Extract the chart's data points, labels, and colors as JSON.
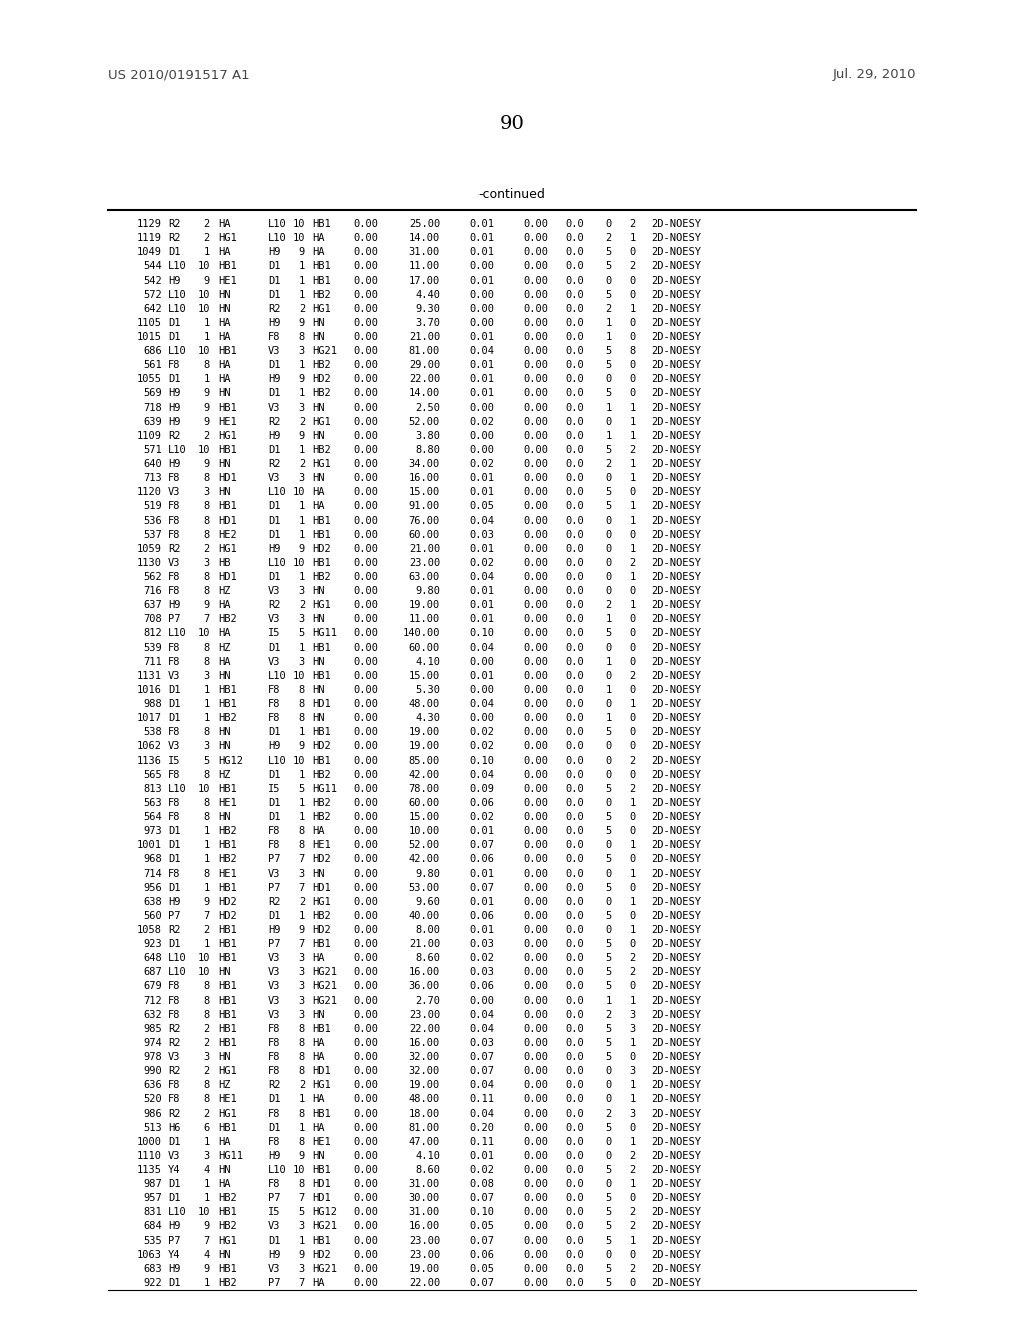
{
  "header_text": "-continued",
  "page_number": "90",
  "patent_left": "US 2010/0191517 A1",
  "patent_right": "Jul. 29, 2010",
  "rows": [
    [
      "1129",
      "R2",
      "2",
      "HA",
      "L10",
      "10",
      "HB1",
      "0.00",
      "25.00",
      "0.01",
      "0.00",
      "0.0",
      "0",
      "2",
      "2D-NOESY"
    ],
    [
      "1119",
      "R2",
      "2",
      "HG1",
      "L10",
      "10",
      "HA",
      "0.00",
      "14.00",
      "0.01",
      "0.00",
      "0.0",
      "2",
      "1",
      "2D-NOESY"
    ],
    [
      "1049",
      "D1",
      "1",
      "HA",
      "H9",
      "9",
      "HA",
      "0.00",
      "31.00",
      "0.01",
      "0.00",
      "0.0",
      "5",
      "0",
      "2D-NOESY"
    ],
    [
      "544",
      "L10",
      "10",
      "HB1",
      "D1",
      "1",
      "HB1",
      "0.00",
      "11.00",
      "0.00",
      "0.00",
      "0.0",
      "5",
      "2",
      "2D-NOESY"
    ],
    [
      "542",
      "H9",
      "9",
      "HE1",
      "D1",
      "1",
      "HB1",
      "0.00",
      "17.00",
      "0.01",
      "0.00",
      "0.0",
      "0",
      "0",
      "2D-NOESY"
    ],
    [
      "572",
      "L10",
      "10",
      "HN",
      "D1",
      "1",
      "HB2",
      "0.00",
      "4.40",
      "0.00",
      "0.00",
      "0.0",
      "5",
      "0",
      "2D-NOESY"
    ],
    [
      "642",
      "L10",
      "10",
      "HN",
      "R2",
      "2",
      "HG1",
      "0.00",
      "9.30",
      "0.00",
      "0.00",
      "0.0",
      "2",
      "1",
      "2D-NOESY"
    ],
    [
      "1105",
      "D1",
      "1",
      "HA",
      "H9",
      "9",
      "HN",
      "0.00",
      "3.70",
      "0.00",
      "0.00",
      "0.0",
      "1",
      "0",
      "2D-NOESY"
    ],
    [
      "1015",
      "D1",
      "1",
      "HA",
      "F8",
      "8",
      "HN",
      "0.00",
      "21.00",
      "0.01",
      "0.00",
      "0.0",
      "1",
      "0",
      "2D-NOESY"
    ],
    [
      "686",
      "L10",
      "10",
      "HB1",
      "V3",
      "3",
      "HG21",
      "0.00",
      "81.00",
      "0.04",
      "0.00",
      "0.0",
      "5",
      "8",
      "2D-NOESY"
    ],
    [
      "561",
      "F8",
      "8",
      "HA",
      "D1",
      "1",
      "HB2",
      "0.00",
      "29.00",
      "0.01",
      "0.00",
      "0.0",
      "5",
      "0",
      "2D-NOESY"
    ],
    [
      "1055",
      "D1",
      "1",
      "HA",
      "H9",
      "9",
      "HD2",
      "0.00",
      "22.00",
      "0.01",
      "0.00",
      "0.0",
      "0",
      "0",
      "2D-NOESY"
    ],
    [
      "569",
      "H9",
      "9",
      "HN",
      "D1",
      "1",
      "HB2",
      "0.00",
      "14.00",
      "0.01",
      "0.00",
      "0.0",
      "5",
      "0",
      "2D-NOESY"
    ],
    [
      "718",
      "H9",
      "9",
      "HB1",
      "V3",
      "3",
      "HN",
      "0.00",
      "2.50",
      "0.00",
      "0.00",
      "0.0",
      "1",
      "1",
      "2D-NOESY"
    ],
    [
      "639",
      "H9",
      "9",
      "HE1",
      "R2",
      "2",
      "HG1",
      "0.00",
      "52.00",
      "0.02",
      "0.00",
      "0.0",
      "0",
      "1",
      "2D-NOESY"
    ],
    [
      "1109",
      "R2",
      "2",
      "HG1",
      "H9",
      "9",
      "HN",
      "0.00",
      "3.80",
      "0.00",
      "0.00",
      "0.0",
      "1",
      "1",
      "2D-NOESY"
    ],
    [
      "571",
      "L10",
      "10",
      "HB1",
      "D1",
      "1",
      "HB2",
      "0.00",
      "8.80",
      "0.00",
      "0.00",
      "0.0",
      "5",
      "2",
      "2D-NOESY"
    ],
    [
      "640",
      "H9",
      "9",
      "HN",
      "R2",
      "2",
      "HG1",
      "0.00",
      "34.00",
      "0.02",
      "0.00",
      "0.0",
      "2",
      "1",
      "2D-NOESY"
    ],
    [
      "713",
      "F8",
      "8",
      "HD1",
      "V3",
      "3",
      "HN",
      "0.00",
      "16.00",
      "0.01",
      "0.00",
      "0.0",
      "0",
      "1",
      "2D-NOESY"
    ],
    [
      "1120",
      "V3",
      "3",
      "HN",
      "L10",
      "10",
      "HA",
      "0.00",
      "15.00",
      "0.01",
      "0.00",
      "0.0",
      "5",
      "0",
      "2D-NOESY"
    ],
    [
      "519",
      "F8",
      "8",
      "HB1",
      "D1",
      "1",
      "HA",
      "0.00",
      "91.00",
      "0.05",
      "0.00",
      "0.0",
      "5",
      "1",
      "2D-NOESY"
    ],
    [
      "536",
      "F8",
      "8",
      "HD1",
      "D1",
      "1",
      "HB1",
      "0.00",
      "76.00",
      "0.04",
      "0.00",
      "0.0",
      "0",
      "1",
      "2D-NOESY"
    ],
    [
      "537",
      "F8",
      "8",
      "HE2",
      "D1",
      "1",
      "HB1",
      "0.00",
      "60.00",
      "0.03",
      "0.00",
      "0.0",
      "0",
      "0",
      "2D-NOESY"
    ],
    [
      "1059",
      "R2",
      "2",
      "HG1",
      "H9",
      "9",
      "HD2",
      "0.00",
      "21.00",
      "0.01",
      "0.00",
      "0.0",
      "0",
      "1",
      "2D-NOESY"
    ],
    [
      "1130",
      "V3",
      "3",
      "HB",
      "L10",
      "10",
      "HB1",
      "0.00",
      "23.00",
      "0.02",
      "0.00",
      "0.0",
      "0",
      "2",
      "2D-NOESY"
    ],
    [
      "562",
      "F8",
      "8",
      "HD1",
      "D1",
      "1",
      "HB2",
      "0.00",
      "63.00",
      "0.04",
      "0.00",
      "0.0",
      "0",
      "1",
      "2D-NOESY"
    ],
    [
      "716",
      "F8",
      "8",
      "HZ",
      "V3",
      "3",
      "HN",
      "0.00",
      "9.80",
      "0.01",
      "0.00",
      "0.0",
      "0",
      "0",
      "2D-NOESY"
    ],
    [
      "637",
      "H9",
      "9",
      "HA",
      "R2",
      "2",
      "HG1",
      "0.00",
      "19.00",
      "0.01",
      "0.00",
      "0.0",
      "2",
      "1",
      "2D-NOESY"
    ],
    [
      "708",
      "P7",
      "7",
      "HB2",
      "V3",
      "3",
      "HN",
      "0.00",
      "11.00",
      "0.01",
      "0.00",
      "0.0",
      "1",
      "0",
      "2D-NOESY"
    ],
    [
      "812",
      "L10",
      "10",
      "HA",
      "I5",
      "5",
      "HG11",
      "0.00",
      "140.00",
      "0.10",
      "0.00",
      "0.0",
      "5",
      "0",
      "2D-NOESY"
    ],
    [
      "539",
      "F8",
      "8",
      "HZ",
      "D1",
      "1",
      "HB1",
      "0.00",
      "60.00",
      "0.04",
      "0.00",
      "0.0",
      "0",
      "0",
      "2D-NOESY"
    ],
    [
      "711",
      "F8",
      "8",
      "HA",
      "V3",
      "3",
      "HN",
      "0.00",
      "4.10",
      "0.00",
      "0.00",
      "0.0",
      "1",
      "0",
      "2D-NOESY"
    ],
    [
      "1131",
      "V3",
      "3",
      "HN",
      "L10",
      "10",
      "HB1",
      "0.00",
      "15.00",
      "0.01",
      "0.00",
      "0.0",
      "0",
      "2",
      "2D-NOESY"
    ],
    [
      "1016",
      "D1",
      "1",
      "HB1",
      "F8",
      "8",
      "HN",
      "0.00",
      "5.30",
      "0.00",
      "0.00",
      "0.0",
      "1",
      "0",
      "2D-NOESY"
    ],
    [
      "988",
      "D1",
      "1",
      "HB1",
      "F8",
      "8",
      "HD1",
      "0.00",
      "48.00",
      "0.04",
      "0.00",
      "0.0",
      "0",
      "1",
      "2D-NOESY"
    ],
    [
      "1017",
      "D1",
      "1",
      "HB2",
      "F8",
      "8",
      "HN",
      "0.00",
      "4.30",
      "0.00",
      "0.00",
      "0.0",
      "1",
      "0",
      "2D-NOESY"
    ],
    [
      "538",
      "F8",
      "8",
      "HN",
      "D1",
      "1",
      "HB1",
      "0.00",
      "19.00",
      "0.02",
      "0.00",
      "0.0",
      "5",
      "0",
      "2D-NOESY"
    ],
    [
      "1062",
      "V3",
      "3",
      "HN",
      "H9",
      "9",
      "HD2",
      "0.00",
      "19.00",
      "0.02",
      "0.00",
      "0.0",
      "0",
      "0",
      "2D-NOESY"
    ],
    [
      "1136",
      "I5",
      "5",
      "HG12",
      "L10",
      "10",
      "HB1",
      "0.00",
      "85.00",
      "0.10",
      "0.00",
      "0.0",
      "0",
      "2",
      "2D-NOESY"
    ],
    [
      "565",
      "F8",
      "8",
      "HZ",
      "D1",
      "1",
      "HB2",
      "0.00",
      "42.00",
      "0.04",
      "0.00",
      "0.0",
      "0",
      "0",
      "2D-NOESY"
    ],
    [
      "813",
      "L10",
      "10",
      "HB1",
      "I5",
      "5",
      "HG11",
      "0.00",
      "78.00",
      "0.09",
      "0.00",
      "0.0",
      "5",
      "2",
      "2D-NOESY"
    ],
    [
      "563",
      "F8",
      "8",
      "HE1",
      "D1",
      "1",
      "HB2",
      "0.00",
      "60.00",
      "0.06",
      "0.00",
      "0.0",
      "0",
      "1",
      "2D-NOESY"
    ],
    [
      "564",
      "F8",
      "8",
      "HN",
      "D1",
      "1",
      "HB2",
      "0.00",
      "15.00",
      "0.02",
      "0.00",
      "0.0",
      "5",
      "0",
      "2D-NOESY"
    ],
    [
      "973",
      "D1",
      "1",
      "HB2",
      "F8",
      "8",
      "HA",
      "0.00",
      "10.00",
      "0.01",
      "0.00",
      "0.0",
      "5",
      "0",
      "2D-NOESY"
    ],
    [
      "1001",
      "D1",
      "1",
      "HB1",
      "F8",
      "8",
      "HE1",
      "0.00",
      "52.00",
      "0.07",
      "0.00",
      "0.0",
      "0",
      "1",
      "2D-NOESY"
    ],
    [
      "968",
      "D1",
      "1",
      "HB2",
      "P7",
      "7",
      "HD2",
      "0.00",
      "42.00",
      "0.06",
      "0.00",
      "0.0",
      "5",
      "0",
      "2D-NOESY"
    ],
    [
      "714",
      "F8",
      "8",
      "HE1",
      "V3",
      "3",
      "HN",
      "0.00",
      "9.80",
      "0.01",
      "0.00",
      "0.0",
      "0",
      "1",
      "2D-NOESY"
    ],
    [
      "956",
      "D1",
      "1",
      "HB1",
      "P7",
      "7",
      "HD1",
      "0.00",
      "53.00",
      "0.07",
      "0.00",
      "0.0",
      "5",
      "0",
      "2D-NOESY"
    ],
    [
      "638",
      "H9",
      "9",
      "HD2",
      "R2",
      "2",
      "HG1",
      "0.00",
      "9.60",
      "0.01",
      "0.00",
      "0.0",
      "0",
      "1",
      "2D-NOESY"
    ],
    [
      "560",
      "P7",
      "7",
      "HD2",
      "D1",
      "1",
      "HB2",
      "0.00",
      "40.00",
      "0.06",
      "0.00",
      "0.0",
      "5",
      "0",
      "2D-NOESY"
    ],
    [
      "1058",
      "R2",
      "2",
      "HB1",
      "H9",
      "9",
      "HD2",
      "0.00",
      "8.00",
      "0.01",
      "0.00",
      "0.0",
      "0",
      "1",
      "2D-NOESY"
    ],
    [
      "923",
      "D1",
      "1",
      "HB1",
      "P7",
      "7",
      "HB1",
      "0.00",
      "21.00",
      "0.03",
      "0.00",
      "0.0",
      "5",
      "0",
      "2D-NOESY"
    ],
    [
      "648",
      "L10",
      "10",
      "HB1",
      "V3",
      "3",
      "HA",
      "0.00",
      "8.60",
      "0.02",
      "0.00",
      "0.0",
      "5",
      "2",
      "2D-NOESY"
    ],
    [
      "687",
      "L10",
      "10",
      "HN",
      "V3",
      "3",
      "HG21",
      "0.00",
      "16.00",
      "0.03",
      "0.00",
      "0.0",
      "5",
      "2",
      "2D-NOESY"
    ],
    [
      "679",
      "F8",
      "8",
      "HB1",
      "V3",
      "3",
      "HG21",
      "0.00",
      "36.00",
      "0.06",
      "0.00",
      "0.0",
      "5",
      "0",
      "2D-NOESY"
    ],
    [
      "712",
      "F8",
      "8",
      "HB1",
      "V3",
      "3",
      "HG21",
      "0.00",
      "2.70",
      "0.00",
      "0.00",
      "0.0",
      "1",
      "1",
      "2D-NOESY"
    ],
    [
      "632",
      "F8",
      "8",
      "HB1",
      "V3",
      "3",
      "HN",
      "0.00",
      "23.00",
      "0.04",
      "0.00",
      "0.0",
      "2",
      "3",
      "2D-NOESY"
    ],
    [
      "985",
      "R2",
      "2",
      "HB1",
      "F8",
      "8",
      "HB1",
      "0.00",
      "22.00",
      "0.04",
      "0.00",
      "0.0",
      "5",
      "3",
      "2D-NOESY"
    ],
    [
      "974",
      "R2",
      "2",
      "HB1",
      "F8",
      "8",
      "HA",
      "0.00",
      "16.00",
      "0.03",
      "0.00",
      "0.0",
      "5",
      "1",
      "2D-NOESY"
    ],
    [
      "978",
      "V3",
      "3",
      "HN",
      "F8",
      "8",
      "HA",
      "0.00",
      "32.00",
      "0.07",
      "0.00",
      "0.0",
      "5",
      "0",
      "2D-NOESY"
    ],
    [
      "990",
      "R2",
      "2",
      "HG1",
      "F8",
      "8",
      "HD1",
      "0.00",
      "32.00",
      "0.07",
      "0.00",
      "0.0",
      "0",
      "3",
      "2D-NOESY"
    ],
    [
      "636",
      "F8",
      "8",
      "HZ",
      "R2",
      "2",
      "HG1",
      "0.00",
      "19.00",
      "0.04",
      "0.00",
      "0.0",
      "0",
      "1",
      "2D-NOESY"
    ],
    [
      "520",
      "F8",
      "8",
      "HE1",
      "D1",
      "1",
      "HA",
      "0.00",
      "48.00",
      "0.11",
      "0.00",
      "0.0",
      "0",
      "1",
      "2D-NOESY"
    ],
    [
      "986",
      "R2",
      "2",
      "HG1",
      "F8",
      "8",
      "HB1",
      "0.00",
      "18.00",
      "0.04",
      "0.00",
      "0.0",
      "2",
      "3",
      "2D-NOESY"
    ],
    [
      "513",
      "H6",
      "6",
      "HB1",
      "D1",
      "1",
      "HA",
      "0.00",
      "81.00",
      "0.20",
      "0.00",
      "0.0",
      "5",
      "0",
      "2D-NOESY"
    ],
    [
      "1000",
      "D1",
      "1",
      "HA",
      "F8",
      "8",
      "HE1",
      "0.00",
      "47.00",
      "0.11",
      "0.00",
      "0.0",
      "0",
      "1",
      "2D-NOESY"
    ],
    [
      "1110",
      "V3",
      "3",
      "HG11",
      "H9",
      "9",
      "HN",
      "0.00",
      "4.10",
      "0.01",
      "0.00",
      "0.0",
      "0",
      "2",
      "2D-NOESY"
    ],
    [
      "1135",
      "Y4",
      "4",
      "HN",
      "L10",
      "10",
      "HB1",
      "0.00",
      "8.60",
      "0.02",
      "0.00",
      "0.0",
      "5",
      "2",
      "2D-NOESY"
    ],
    [
      "987",
      "D1",
      "1",
      "HA",
      "F8",
      "8",
      "HD1",
      "0.00",
      "31.00",
      "0.08",
      "0.00",
      "0.0",
      "0",
      "1",
      "2D-NOESY"
    ],
    [
      "957",
      "D1",
      "1",
      "HB2",
      "P7",
      "7",
      "HD1",
      "0.00",
      "30.00",
      "0.07",
      "0.00",
      "0.0",
      "5",
      "0",
      "2D-NOESY"
    ],
    [
      "831",
      "L10",
      "10",
      "HB1",
      "I5",
      "5",
      "HG12",
      "0.00",
      "31.00",
      "0.10",
      "0.00",
      "0.0",
      "5",
      "2",
      "2D-NOESY"
    ],
    [
      "684",
      "H9",
      "9",
      "HB2",
      "V3",
      "3",
      "HG21",
      "0.00",
      "16.00",
      "0.05",
      "0.00",
      "0.0",
      "5",
      "2",
      "2D-NOESY"
    ],
    [
      "535",
      "P7",
      "7",
      "HG1",
      "D1",
      "1",
      "HB1",
      "0.00",
      "23.00",
      "0.07",
      "0.00",
      "0.0",
      "5",
      "1",
      "2D-NOESY"
    ],
    [
      "1063",
      "Y4",
      "4",
      "HN",
      "H9",
      "9",
      "HD2",
      "0.00",
      "23.00",
      "0.06",
      "0.00",
      "0.0",
      "0",
      "0",
      "2D-NOESY"
    ],
    [
      "683",
      "H9",
      "9",
      "HB1",
      "V3",
      "3",
      "HG21",
      "0.00",
      "19.00",
      "0.05",
      "0.00",
      "0.0",
      "5",
      "2",
      "2D-NOESY"
    ],
    [
      "922",
      "D1",
      "1",
      "HB2",
      "P7",
      "7",
      "HA",
      "0.00",
      "22.00",
      "0.07",
      "0.00",
      "0.0",
      "5",
      "0",
      "2D-NOESY"
    ]
  ],
  "figsize": [
    10.24,
    13.2
  ],
  "dpi": 100,
  "bg_color": "white",
  "font_color": "#222222",
  "header_color": "#444444",
  "font_size": 7.5,
  "header_font_size": 9.5,
  "page_num_font_size": 14
}
